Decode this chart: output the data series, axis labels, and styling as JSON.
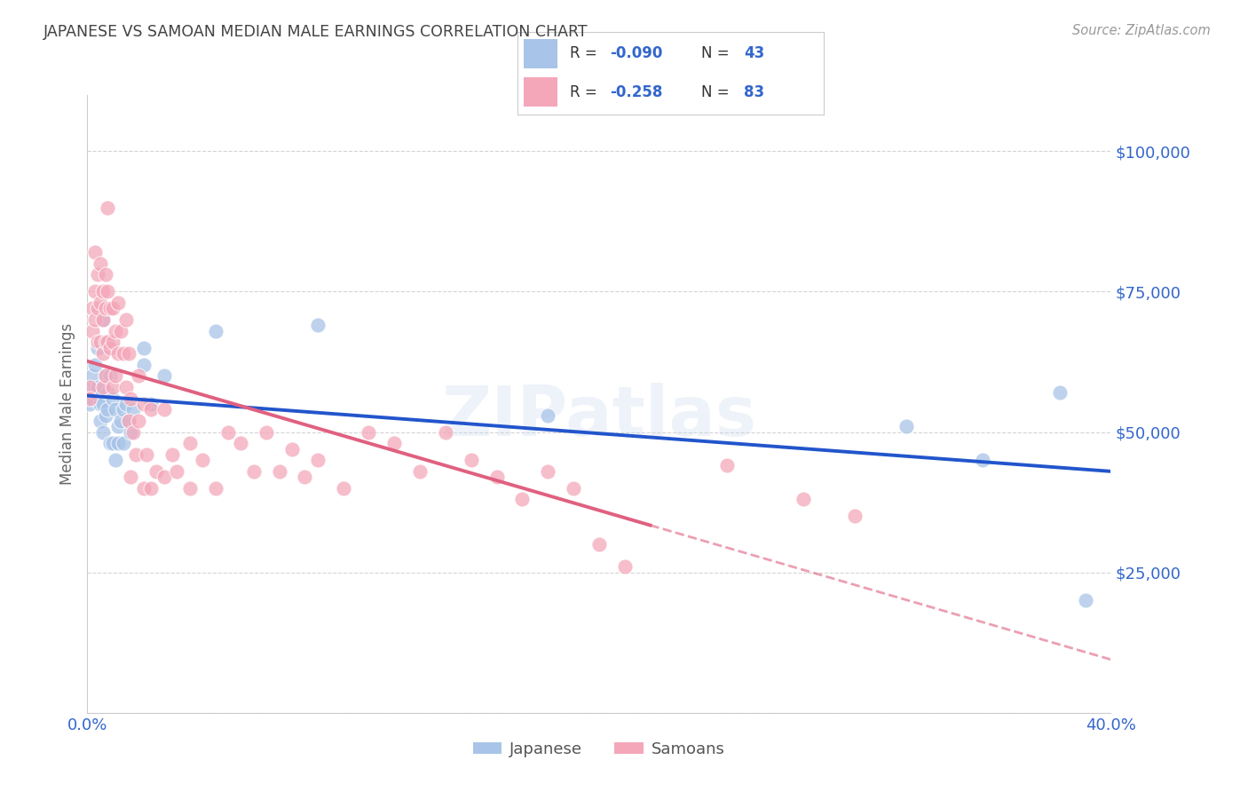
{
  "title": "JAPANESE VS SAMOAN MEDIAN MALE EARNINGS CORRELATION CHART",
  "source": "Source: ZipAtlas.com",
  "ylabel": "Median Male Earnings",
  "xlim": [
    0.0,
    0.4
  ],
  "ylim": [
    0,
    110000
  ],
  "yticks": [
    0,
    25000,
    50000,
    75000,
    100000
  ],
  "ytick_labels": [
    "",
    "$25,000",
    "$50,000",
    "$75,000",
    "$100,000"
  ],
  "background_color": "#ffffff",
  "grid_color": "#d0d0d0",
  "watermark": "ZIPatlas",
  "japanese_color": "#a8c4e8",
  "samoan_color": "#f4a7b9",
  "japanese_line_color": "#2255cc",
  "samoan_line_color": "#e06080",
  "title_color": "#444444",
  "axis_label_color": "#666666",
  "tick_color": "#3366cc",
  "japanese_points": [
    [
      0.001,
      58000
    ],
    [
      0.001,
      55000
    ],
    [
      0.002,
      60000
    ],
    [
      0.002,
      56000
    ],
    [
      0.003,
      62000
    ],
    [
      0.003,
      57000
    ],
    [
      0.004,
      65000
    ],
    [
      0.004,
      58000
    ],
    [
      0.005,
      55000
    ],
    [
      0.005,
      52000
    ],
    [
      0.006,
      70000
    ],
    [
      0.006,
      55000
    ],
    [
      0.006,
      50000
    ],
    [
      0.007,
      60000
    ],
    [
      0.007,
      53000
    ],
    [
      0.008,
      57000
    ],
    [
      0.008,
      54000
    ],
    [
      0.009,
      60000
    ],
    [
      0.009,
      48000
    ],
    [
      0.01,
      56000
    ],
    [
      0.01,
      48000
    ],
    [
      0.011,
      54000
    ],
    [
      0.011,
      45000
    ],
    [
      0.012,
      51000
    ],
    [
      0.012,
      48000
    ],
    [
      0.013,
      52000
    ],
    [
      0.014,
      54000
    ],
    [
      0.014,
      48000
    ],
    [
      0.015,
      55000
    ],
    [
      0.016,
      52000
    ],
    [
      0.017,
      50000
    ],
    [
      0.018,
      54000
    ],
    [
      0.022,
      65000
    ],
    [
      0.022,
      62000
    ],
    [
      0.025,
      55000
    ],
    [
      0.03,
      60000
    ],
    [
      0.05,
      68000
    ],
    [
      0.09,
      69000
    ],
    [
      0.18,
      53000
    ],
    [
      0.32,
      51000
    ],
    [
      0.35,
      45000
    ],
    [
      0.38,
      57000
    ],
    [
      0.39,
      20000
    ]
  ],
  "samoan_points": [
    [
      0.001,
      58000
    ],
    [
      0.001,
      56000
    ],
    [
      0.002,
      72000
    ],
    [
      0.002,
      68000
    ],
    [
      0.003,
      82000
    ],
    [
      0.003,
      75000
    ],
    [
      0.003,
      70000
    ],
    [
      0.004,
      78000
    ],
    [
      0.004,
      72000
    ],
    [
      0.004,
      66000
    ],
    [
      0.005,
      80000
    ],
    [
      0.005,
      73000
    ],
    [
      0.005,
      66000
    ],
    [
      0.006,
      75000
    ],
    [
      0.006,
      70000
    ],
    [
      0.006,
      64000
    ],
    [
      0.006,
      58000
    ],
    [
      0.007,
      78000
    ],
    [
      0.007,
      72000
    ],
    [
      0.007,
      66000
    ],
    [
      0.007,
      60000
    ],
    [
      0.008,
      90000
    ],
    [
      0.008,
      75000
    ],
    [
      0.008,
      66000
    ],
    [
      0.009,
      72000
    ],
    [
      0.009,
      65000
    ],
    [
      0.01,
      72000
    ],
    [
      0.01,
      66000
    ],
    [
      0.01,
      58000
    ],
    [
      0.011,
      68000
    ],
    [
      0.011,
      60000
    ],
    [
      0.012,
      73000
    ],
    [
      0.012,
      64000
    ],
    [
      0.013,
      68000
    ],
    [
      0.014,
      64000
    ],
    [
      0.015,
      70000
    ],
    [
      0.015,
      58000
    ],
    [
      0.016,
      64000
    ],
    [
      0.016,
      52000
    ],
    [
      0.017,
      56000
    ],
    [
      0.017,
      42000
    ],
    [
      0.018,
      50000
    ],
    [
      0.019,
      46000
    ],
    [
      0.02,
      60000
    ],
    [
      0.02,
      52000
    ],
    [
      0.022,
      55000
    ],
    [
      0.022,
      40000
    ],
    [
      0.023,
      46000
    ],
    [
      0.025,
      54000
    ],
    [
      0.025,
      40000
    ],
    [
      0.027,
      43000
    ],
    [
      0.03,
      54000
    ],
    [
      0.03,
      42000
    ],
    [
      0.033,
      46000
    ],
    [
      0.035,
      43000
    ],
    [
      0.04,
      48000
    ],
    [
      0.04,
      40000
    ],
    [
      0.045,
      45000
    ],
    [
      0.05,
      40000
    ],
    [
      0.055,
      50000
    ],
    [
      0.06,
      48000
    ],
    [
      0.065,
      43000
    ],
    [
      0.07,
      50000
    ],
    [
      0.075,
      43000
    ],
    [
      0.08,
      47000
    ],
    [
      0.085,
      42000
    ],
    [
      0.09,
      45000
    ],
    [
      0.1,
      40000
    ],
    [
      0.11,
      50000
    ],
    [
      0.12,
      48000
    ],
    [
      0.13,
      43000
    ],
    [
      0.14,
      50000
    ],
    [
      0.15,
      45000
    ],
    [
      0.16,
      42000
    ],
    [
      0.17,
      38000
    ],
    [
      0.18,
      43000
    ],
    [
      0.19,
      40000
    ],
    [
      0.2,
      30000
    ],
    [
      0.21,
      26000
    ],
    [
      0.25,
      44000
    ],
    [
      0.28,
      38000
    ],
    [
      0.3,
      35000
    ]
  ]
}
